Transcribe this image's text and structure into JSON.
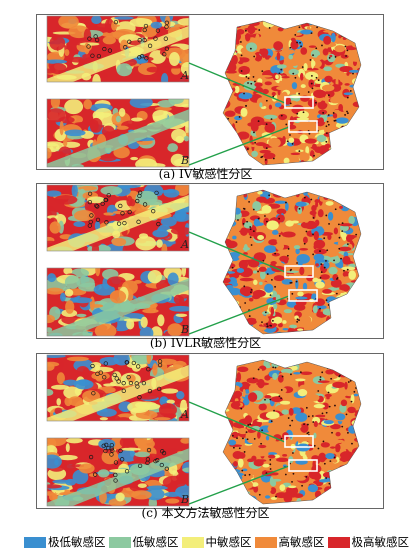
{
  "figure": {
    "panels": [
      {
        "id": "a",
        "caption": "(a) IV敏感性分区",
        "inset_top_letter": "A",
        "inset_bottom_letter": "B"
      },
      {
        "id": "b",
        "caption": "(b) IVLR敏感性分区",
        "inset_top_letter": "A",
        "inset_bottom_letter": "B"
      },
      {
        "id": "c",
        "caption": "(c) 本文方法敏感性分区",
        "inset_top_letter": "A",
        "inset_bottom_letter": "B"
      }
    ],
    "legend": [
      {
        "label": "极低敏感区",
        "color": "#3a8fd0"
      },
      {
        "label": "低敏感区",
        "color": "#8cc9a0"
      },
      {
        "label": "中敏感区",
        "color": "#f3ee7a"
      },
      {
        "label": "高敏感区",
        "color": "#f08a3a"
      },
      {
        "label": "极高敏感区",
        "color": "#d8262a"
      }
    ],
    "connector_color": "#22a04a",
    "box_color": "#ffffff"
  }
}
